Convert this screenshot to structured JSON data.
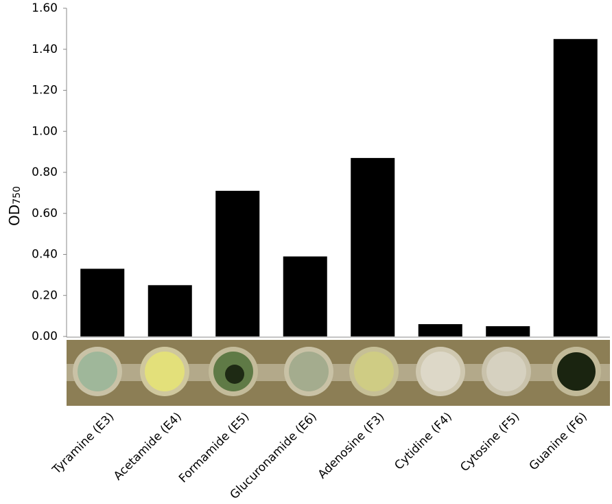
{
  "chart_data": {
    "type": "bar",
    "ylabel": {
      "text": "OD",
      "subscript": "750"
    },
    "categories": [
      "Tyramine (E3)",
      "Acetamide (E4)",
      "Formamide (E5)",
      "Glucuronamide (E6)",
      "Adenosine (F3)",
      "Cytidine (F4)",
      "Cytosine (F5)",
      "Guanine (F6)"
    ],
    "values": [
      0.33,
      0.25,
      0.71,
      0.39,
      0.87,
      0.06,
      0.05,
      1.45
    ],
    "color": "#000000",
    "ylim": [
      0,
      1.6
    ],
    "yticks": [
      {
        "value": 0,
        "label": "0.00"
      },
      {
        "value": 0.2,
        "label": "0.20"
      },
      {
        "value": 0.4,
        "label": "0.40"
      },
      {
        "value": 0.6,
        "label": "0.60"
      },
      {
        "value": 0.8,
        "label": "0.80"
      },
      {
        "value": 1.0,
        "label": "1.00"
      },
      {
        "value": 1.2,
        "label": "1.20"
      },
      {
        "value": 1.4,
        "label": "1.40"
      },
      {
        "value": 1.6,
        "label": "1.60"
      }
    ],
    "grid": false
  }
}
